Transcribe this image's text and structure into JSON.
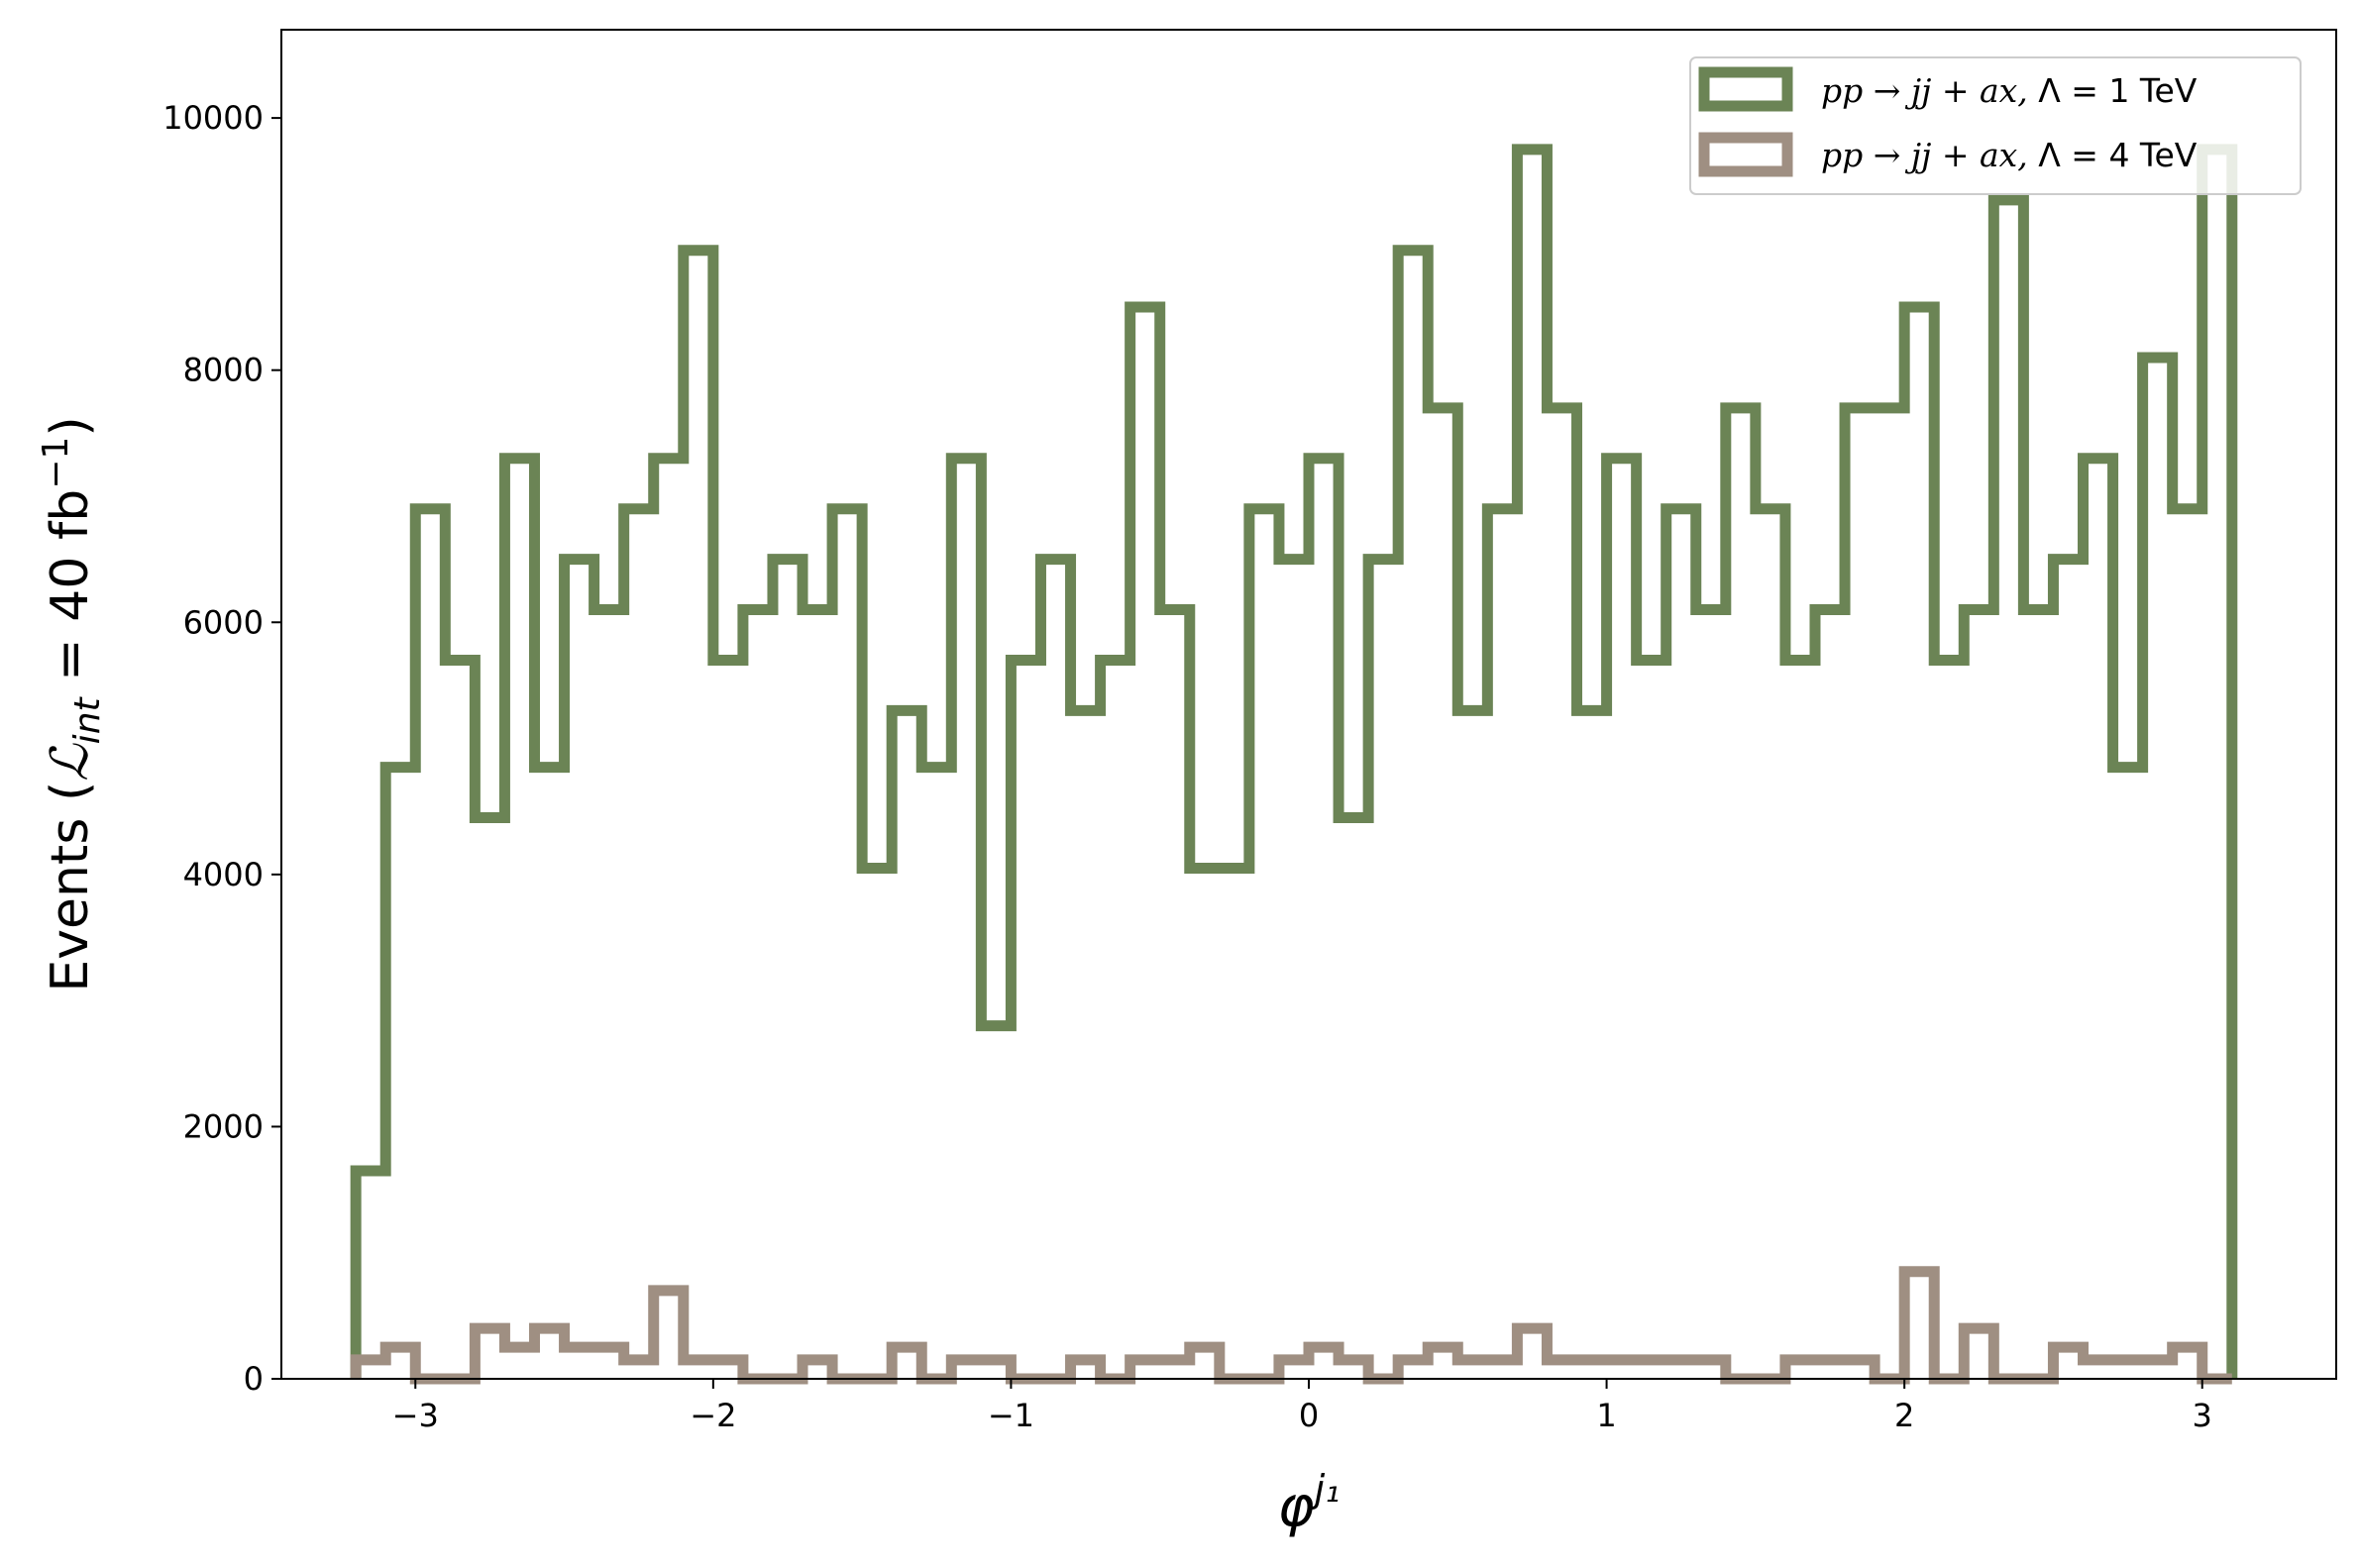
{
  "chart_data": {
    "type": "step-histogram",
    "xlabel": "φ",
    "xlabel_superscript": "j₁",
    "ylabel_prefix": "Events (",
    "ylabel_L": "ℒ",
    "ylabel_sub": "int",
    "ylabel_mid": " = 40 fb",
    "ylabel_sup": "−1",
    "ylabel_suffix": ")",
    "xlim": [
      -3.45,
      3.45
    ],
    "ylim": [
      0,
      10700
    ],
    "x_ticks": [
      -3,
      -2,
      -1,
      0,
      1,
      2,
      3
    ],
    "x_tick_labels": [
      "−3",
      "−2",
      "−1",
      "0",
      "1",
      "2",
      "3"
    ],
    "y_ticks": [
      0,
      2000,
      4000,
      6000,
      8000,
      10000
    ],
    "y_tick_labels": [
      "0",
      "2000",
      "4000",
      "6000",
      "8000",
      "10000"
    ],
    "bin_start": -3.2,
    "bin_end": 3.1,
    "legend_position": "top-right",
    "series": [
      {
        "name": "pp → jj + ax, Λ = 1 TeV",
        "name_italic": "pp → jj + ax,",
        "name_rest": " Λ = 1 TeV",
        "color": "#6b8455",
        "values": [
          1650,
          4850,
          6900,
          5700,
          4450,
          7300,
          4850,
          6500,
          6100,
          6900,
          7300,
          8950,
          5700,
          6100,
          6500,
          6100,
          6900,
          4050,
          5300,
          4850,
          7300,
          2800,
          5700,
          6500,
          5300,
          5700,
          8500,
          6100,
          4050,
          4050,
          6900,
          6500,
          7300,
          4450,
          6500,
          8950,
          7700,
          5300,
          6900,
          9750,
          7700,
          5300,
          7300,
          5700,
          6900,
          6100,
          7700,
          6900,
          5700,
          6100,
          7700,
          7700,
          8500,
          5700,
          6100,
          9350,
          6100,
          6500,
          7300,
          4850,
          8100,
          6900,
          9750
        ]
      },
      {
        "name": "pp → jj + ax, Λ = 4 TeV",
        "name_italic": "pp → jj + ax,",
        "name_rest": " Λ = 4 TeV",
        "color": "#9f8f82",
        "values": [
          150,
          250,
          0,
          0,
          400,
          250,
          400,
          250,
          250,
          150,
          700,
          150,
          150,
          0,
          0,
          150,
          0,
          0,
          250,
          0,
          150,
          150,
          0,
          0,
          150,
          0,
          150,
          150,
          250,
          0,
          0,
          150,
          250,
          150,
          0,
          150,
          250,
          150,
          150,
          400,
          150,
          150,
          150,
          150,
          150,
          150,
          0,
          0,
          150,
          150,
          150,
          0,
          850,
          0,
          400,
          0,
          0,
          250,
          150,
          150,
          150,
          250,
          0
        ]
      }
    ]
  }
}
